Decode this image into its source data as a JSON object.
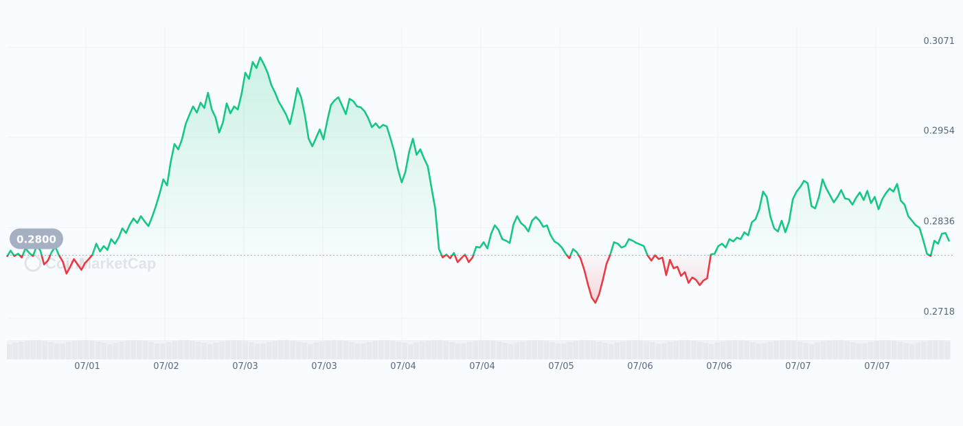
{
  "chart_data": {
    "type": "line",
    "baseline": 0.28,
    "baseline_label": "0.2800",
    "y_ticks": [
      "0.3071",
      "0.2954",
      "0.2836",
      "0.2718"
    ],
    "ylim": [
      0.2718,
      0.3071
    ],
    "x_tick_labels": [
      "07/01",
      "07/02",
      "07/03",
      "07/03",
      "07/04",
      "07/04",
      "07/05",
      "07/06",
      "07/06",
      "07/07",
      "07/07"
    ],
    "watermark": "CoinMarketCap",
    "colors": {
      "up": "#16c784",
      "down": "#ea3943",
      "grid": "#eff2f5",
      "volume": "#e6e9ee"
    },
    "series": [
      {
        "values": [
          0.2798,
          0.2806,
          0.2799,
          0.2802,
          0.2797,
          0.2809,
          0.2803,
          0.2799,
          0.2812,
          0.2806,
          0.2788,
          0.2793,
          0.2804,
          0.2811,
          0.28,
          0.2792,
          0.2776,
          0.2785,
          0.2795,
          0.2788,
          0.2781,
          0.279,
          0.2795,
          0.2801,
          0.2815,
          0.2805,
          0.2812,
          0.2807,
          0.2821,
          0.2815,
          0.2823,
          0.2835,
          0.2829,
          0.284,
          0.2848,
          0.2842,
          0.2851,
          0.2844,
          0.2838,
          0.285,
          0.2864,
          0.288,
          0.2899,
          0.2891,
          0.2922,
          0.2945,
          0.2938,
          0.2951,
          0.2971,
          0.2983,
          0.2994,
          0.2986,
          0.2999,
          0.2992,
          0.3012,
          0.299,
          0.298,
          0.296,
          0.2973,
          0.2998,
          0.2985,
          0.2994,
          0.299,
          0.301,
          0.3038,
          0.303,
          0.3052,
          0.3044,
          0.3058,
          0.3049,
          0.3038,
          0.3022,
          0.3012,
          0.3,
          0.2992,
          0.2983,
          0.2971,
          0.2993,
          0.3018,
          0.3006,
          0.2983,
          0.2952,
          0.2942,
          0.2953,
          0.2964,
          0.2951,
          0.2975,
          0.2996,
          0.3002,
          0.3006,
          0.2995,
          0.2984,
          0.3004,
          0.3001,
          0.2994,
          0.2993,
          0.2988,
          0.2979,
          0.2967,
          0.2972,
          0.2966,
          0.297,
          0.2968,
          0.2952,
          0.2935,
          0.2912,
          0.2895,
          0.2909,
          0.2935,
          0.2952,
          0.2931,
          0.2938,
          0.2926,
          0.2916,
          0.2888,
          0.2861,
          0.2808,
          0.2797,
          0.2801,
          0.2796,
          0.2803,
          0.2791,
          0.2796,
          0.2801,
          0.2791,
          0.2797,
          0.2811,
          0.281,
          0.2817,
          0.2809,
          0.2828,
          0.2839,
          0.2833,
          0.2821,
          0.2819,
          0.2816,
          0.284,
          0.2851,
          0.2842,
          0.2838,
          0.2831,
          0.2845,
          0.285,
          0.2845,
          0.2837,
          0.2839,
          0.2826,
          0.2818,
          0.2815,
          0.281,
          0.2802,
          0.2796,
          0.2808,
          0.2804,
          0.2796,
          0.2781,
          0.2762,
          0.2745,
          0.2738,
          0.2749,
          0.2768,
          0.2789,
          0.2801,
          0.2817,
          0.2815,
          0.281,
          0.2812,
          0.2821,
          0.2819,
          0.2816,
          0.2814,
          0.2812,
          0.28,
          0.2793,
          0.28,
          0.2795,
          0.2797,
          0.2774,
          0.2794,
          0.2783,
          0.2785,
          0.2773,
          0.2778,
          0.2764,
          0.2771,
          0.2768,
          0.2761,
          0.2767,
          0.277,
          0.2801,
          0.2802,
          0.2812,
          0.2815,
          0.281,
          0.2821,
          0.2818,
          0.2823,
          0.2821,
          0.283,
          0.2826,
          0.2843,
          0.2847,
          0.286,
          0.2883,
          0.2876,
          0.285,
          0.2835,
          0.2831,
          0.2845,
          0.283,
          0.2844,
          0.2873,
          0.2883,
          0.2889,
          0.2897,
          0.2894,
          0.2864,
          0.2861,
          0.2876,
          0.2899,
          0.2887,
          0.2878,
          0.2869,
          0.2876,
          0.2885,
          0.2874,
          0.2873,
          0.2866,
          0.2875,
          0.2882,
          0.2872,
          0.2884,
          0.2868,
          0.2876,
          0.286,
          0.2873,
          0.2881,
          0.2887,
          0.2883,
          0.2893,
          0.2871,
          0.2866,
          0.2851,
          0.2845,
          0.2839,
          0.2836,
          0.282,
          0.2802,
          0.2799,
          0.2819,
          0.2815,
          0.2828,
          0.2829,
          0.2818
        ]
      }
    ]
  }
}
